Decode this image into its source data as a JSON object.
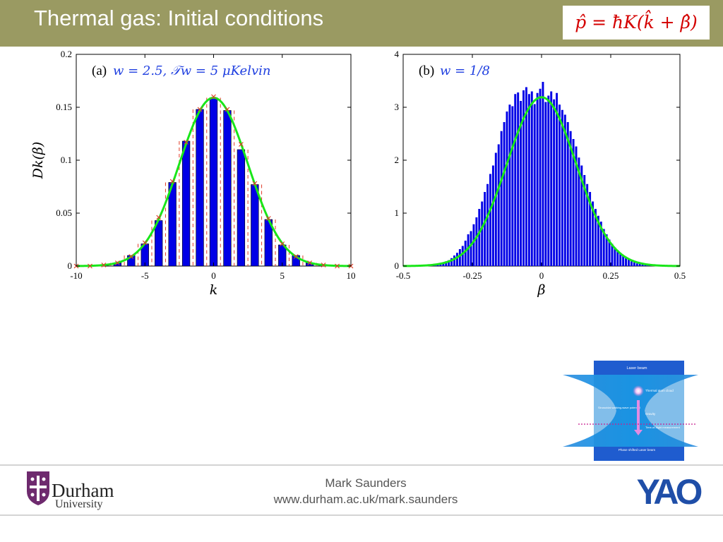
{
  "slide": {
    "title": "Thermal gas: Initial conditions",
    "formula": "p̂ = ħK(k̂ + β̂)"
  },
  "colors": {
    "header_bar": "#9a9a62",
    "bars": "#0000e6",
    "fit": "#19e619",
    "markers": "#e03c28",
    "formula": "#d40000"
  },
  "chart_data": [
    {
      "type": "bar",
      "panel_label": "(a)",
      "annotation": "w = 2.5, 𝒯w = 5 μKelvin",
      "xlabel": "k",
      "ylabel": "Dk(β)",
      "xlim": [
        -10,
        10
      ],
      "ylim": [
        0,
        0.2
      ],
      "xticks": [
        -10,
        -5,
        0,
        5,
        10
      ],
      "yticks": [
        0,
        0.05,
        0.1,
        0.15,
        0.2
      ],
      "grid": false,
      "x": [
        -10,
        -9,
        -8,
        -7,
        -6,
        -5,
        -4,
        -3,
        -2,
        -1,
        0,
        1,
        2,
        3,
        4,
        5,
        6,
        7,
        8,
        9,
        10
      ],
      "values": [
        0,
        0,
        0.001,
        0.003,
        0.01,
        0.021,
        0.043,
        0.079,
        0.118,
        0.148,
        0.159,
        0.147,
        0.11,
        0.077,
        0.044,
        0.02,
        0.01,
        0.003,
        0.001,
        0,
        0
      ],
      "markers": [
        0,
        0,
        0.001,
        0.003,
        0.009,
        0.022,
        0.046,
        0.08,
        0.117,
        0.148,
        0.16,
        0.148,
        0.115,
        0.078,
        0.045,
        0.021,
        0.009,
        0.003,
        0.001,
        0,
        0
      ],
      "fit": {
        "kind": "gaussian",
        "amplitude": 0.159,
        "center": 0,
        "sigma": 2.5
      }
    },
    {
      "type": "bar",
      "panel_label": "(b)",
      "annotation": "w = 1/8",
      "xlabel": "β",
      "ylabel": "",
      "xlim": [
        -0.5,
        0.5
      ],
      "ylim": [
        0,
        4
      ],
      "xticks": [
        -0.5,
        -0.25,
        0,
        0.25,
        0.5
      ],
      "yticks": [
        0,
        1,
        2,
        3,
        4
      ],
      "grid": false,
      "bin_width": 0.01,
      "x": [
        -0.395,
        -0.385,
        -0.375,
        -0.365,
        -0.355,
        -0.345,
        -0.335,
        -0.325,
        -0.315,
        -0.305,
        -0.295,
        -0.285,
        -0.275,
        -0.265,
        -0.255,
        -0.245,
        -0.235,
        -0.225,
        -0.215,
        -0.205,
        -0.195,
        -0.185,
        -0.175,
        -0.165,
        -0.155,
        -0.145,
        -0.135,
        -0.125,
        -0.115,
        -0.105,
        -0.095,
        -0.085,
        -0.075,
        -0.065,
        -0.055,
        -0.045,
        -0.035,
        -0.025,
        -0.015,
        -0.005,
        0.005,
        0.015,
        0.025,
        0.035,
        0.045,
        0.055,
        0.065,
        0.075,
        0.085,
        0.095,
        0.105,
        0.115,
        0.125,
        0.135,
        0.145,
        0.155,
        0.165,
        0.175,
        0.185,
        0.195,
        0.205,
        0.215,
        0.225,
        0.235,
        0.245,
        0.255,
        0.265,
        0.275,
        0.285,
        0.295,
        0.305,
        0.315,
        0.325,
        0.335,
        0.345,
        0.355,
        0.365,
        0.375,
        0.385,
        0.395
      ],
      "values": [
        0.02,
        0.03,
        0.04,
        0.05,
        0.06,
        0.09,
        0.11,
        0.15,
        0.2,
        0.25,
        0.32,
        0.38,
        0.48,
        0.6,
        0.66,
        0.79,
        0.92,
        1.08,
        1.22,
        1.4,
        1.55,
        1.74,
        1.9,
        2.14,
        2.3,
        2.55,
        2.72,
        2.92,
        3.05,
        3.02,
        3.25,
        3.28,
        3.12,
        3.32,
        3.38,
        3.25,
        3.3,
        3.06,
        3.27,
        3.35,
        3.48,
        3.1,
        3.22,
        3.3,
        3.15,
        3.27,
        3.05,
        2.95,
        2.86,
        2.72,
        2.55,
        2.4,
        2.26,
        2.05,
        1.9,
        1.72,
        1.55,
        1.4,
        1.22,
        1.08,
        0.95,
        0.84,
        0.7,
        0.6,
        0.5,
        0.42,
        0.35,
        0.3,
        0.25,
        0.2,
        0.15,
        0.12,
        0.09,
        0.07,
        0.05,
        0.04,
        0.03,
        0.02,
        0.02,
        0.01
      ],
      "fit": {
        "kind": "gaussian",
        "amplitude": 3.19,
        "center": 0,
        "sigma": 0.125
      }
    }
  ],
  "schematic": {
    "laser_beam": "Laser beam",
    "atom_cloud": "Thermal atom cloud",
    "potential": "Sinusoidal walking-wave potential",
    "gravity": "Gravity",
    "tof": "Time-of-flight measurement",
    "phase_beam": "Phase shifted Laser beam"
  },
  "footer": {
    "institution": "Durham",
    "institution_sub": "University",
    "author": "Mark Saunders",
    "url": "www.durham.ac.uk/mark.saunders",
    "logo_text": "YAO"
  }
}
